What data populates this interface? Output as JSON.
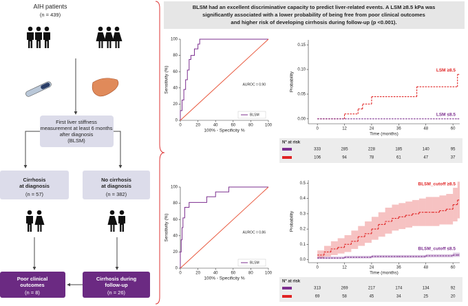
{
  "flow": {
    "title": "AIH patients",
    "n": "(n = 439)",
    "box1": [
      "First liver stiffness",
      "measurement at least 6 months",
      "after diagnosis",
      "(BLSM)"
    ],
    "box_left": [
      "Cirrhosis",
      "at diagnosis",
      "(n = 57)"
    ],
    "box_right": [
      "No cirrhosis",
      "at diagnosis",
      "(n = 382)"
    ],
    "out_left": [
      "Poor clinical",
      "outcomes",
      "(n = 8)"
    ],
    "out_right": [
      "Cirrhosis during",
      "follow-up",
      "(n = 26)"
    ]
  },
  "header": {
    "lines": [
      "BLSM had an excellent discriminative capacity to predict liver-related events. A LSM ≥8.5 kPa was",
      "significantly associated with a lower probability of being free from poor clinical outcomes",
      "and higher risk of developing cirrhosis during follow-up (p <0.001)."
    ]
  },
  "chart_data": [
    {
      "type": "line",
      "xlabel": "100% - Specificity %",
      "ylabel": "Sensitivity (%)",
      "annotation": "AUROC = 0.90",
      "xlim": [
        0,
        100
      ],
      "ylim": [
        0,
        100
      ],
      "xticks": [
        0,
        20,
        40,
        60,
        80,
        100
      ],
      "yticks": [
        0,
        20,
        40,
        60,
        80,
        100
      ],
      "legend": "lower right",
      "series": [
        {
          "name": "BLSM",
          "color": "#7b2d8e",
          "x": [
            0,
            0,
            2,
            2,
            4,
            4,
            6,
            6,
            8,
            8,
            10,
            10,
            12,
            12,
            16,
            16,
            20,
            20,
            22,
            22,
            100
          ],
          "values": [
            0,
            12,
            12,
            25,
            25,
            38,
            38,
            50,
            50,
            62,
            62,
            75,
            75,
            80,
            80,
            88,
            88,
            94,
            94,
            100,
            100
          ]
        },
        {
          "color": "#e8553a",
          "x": [
            0,
            100
          ],
          "values": [
            0,
            100
          ]
        }
      ]
    },
    {
      "type": "line",
      "xlabel": "100% - Specificity %",
      "ylabel": "Sensitivity (%)",
      "annotation": "AUROC = 0.86",
      "xlim": [
        0,
        100
      ],
      "ylim": [
        0,
        100
      ],
      "xticks": [
        0,
        20,
        40,
        60,
        80,
        100
      ],
      "yticks": [
        0,
        20,
        40,
        60,
        80,
        100
      ],
      "legend": "lower right",
      "series": [
        {
          "name": "BLSM",
          "color": "#7b2d8e",
          "x": [
            0,
            0,
            1,
            1,
            2,
            2,
            3,
            3,
            5,
            5,
            10,
            10,
            30,
            30,
            40,
            40,
            50,
            50,
            55,
            55,
            100
          ],
          "values": [
            0,
            20,
            20,
            35,
            35,
            50,
            50,
            62,
            62,
            75,
            75,
            81,
            81,
            88,
            88,
            94,
            94,
            94,
            94,
            100,
            100
          ]
        },
        {
          "color": "#e8553a",
          "x": [
            0,
            100
          ],
          "values": [
            0,
            100
          ]
        }
      ]
    },
    {
      "type": "step",
      "xlabel": "Time (months)",
      "ylabel": "Probability",
      "xlim": [
        -4,
        63
      ],
      "ylim": [
        -0.01,
        0.16
      ],
      "xticks": [
        0,
        12,
        24,
        36,
        48,
        60
      ],
      "yticks": [
        {
          "value": 0,
          "label": "0.00"
        },
        0.05,
        {
          "value": 0.1,
          "label": "0.10"
        },
        0.15
      ],
      "series": [
        {
          "name": "LSM ≥8.5",
          "color": "#e02424",
          "dashed": true,
          "x": [
            0,
            12,
            18,
            20,
            24,
            44,
            62
          ],
          "values": [
            0,
            0.01,
            0.02,
            0.03,
            0.045,
            0.065,
            0.09
          ]
        },
        {
          "name": "LSM ≤8.5",
          "color": "#7b2d8e",
          "dashed": true,
          "x": [
            0,
            62
          ],
          "values": [
            0,
            0
          ]
        }
      ],
      "risk_table": {
        "title": "N° at risk",
        "rows": [
          {
            "color": "#7b2d8e",
            "values": [
              333,
              285,
              228,
              185,
              140,
              95
            ]
          },
          {
            "color": "#e02424",
            "values": [
              106,
              94,
              78,
              61,
              47,
              37
            ]
          }
        ]
      }
    },
    {
      "type": "step",
      "xlabel": "Time (months)",
      "ylabel": "Probability",
      "xlim": [
        -4,
        63
      ],
      "ylim": [
        -0.02,
        0.52
      ],
      "xticks": [
        0,
        12,
        24,
        36,
        48,
        60
      ],
      "yticks": [
        {
          "value": 0,
          "label": "0.0"
        },
        0.1,
        0.2,
        0.3,
        0.4,
        0.5
      ],
      "series": [
        {
          "name": "BLSM_cutoff ≥8.5",
          "color": "#e02424",
          "dashed": true,
          "x": [
            0,
            3,
            6,
            9,
            12,
            15,
            18,
            21,
            24,
            27,
            30,
            33,
            36,
            39,
            42,
            45,
            48,
            51,
            54,
            57,
            60,
            62
          ],
          "values": [
            0.03,
            0.05,
            0.07,
            0.08,
            0.1,
            0.12,
            0.15,
            0.17,
            0.2,
            0.23,
            0.25,
            0.27,
            0.28,
            0.29,
            0.3,
            0.31,
            0.31,
            0.31,
            0.32,
            0.33,
            0.36,
            0.39
          ],
          "lower": [
            0.01,
            0.02,
            0.03,
            0.04,
            0.05,
            0.07,
            0.09,
            0.11,
            0.13,
            0.15,
            0.17,
            0.19,
            0.2,
            0.21,
            0.22,
            0.22,
            0.22,
            0.22,
            0.23,
            0.23,
            0.25,
            0.27
          ],
          "upper": [
            0.06,
            0.09,
            0.12,
            0.14,
            0.16,
            0.19,
            0.22,
            0.25,
            0.28,
            0.31,
            0.34,
            0.36,
            0.37,
            0.38,
            0.39,
            0.4,
            0.41,
            0.41,
            0.42,
            0.43,
            0.47,
            0.51
          ]
        },
        {
          "name": "BLSM_cutoff ≤8.5",
          "color": "#7b2d8e",
          "dashed": true,
          "x": [
            0,
            12,
            24,
            36,
            48,
            60,
            62
          ],
          "values": [
            0.01,
            0.015,
            0.02,
            0.02,
            0.025,
            0.03,
            0.03
          ],
          "lower": [
            0.005,
            0.008,
            0.012,
            0.012,
            0.015,
            0.018,
            0.018
          ],
          "upper": [
            0.02,
            0.025,
            0.03,
            0.03,
            0.035,
            0.045,
            0.045
          ]
        }
      ],
      "risk_table": {
        "title": "N° at risk",
        "rows": [
          {
            "color": "#7b2d8e",
            "values": [
              313,
              269,
              217,
              174,
              134,
              92
            ]
          },
          {
            "color": "#e02424",
            "values": [
              69,
              58,
              45,
              34,
              25,
              20
            ]
          }
        ]
      }
    }
  ]
}
